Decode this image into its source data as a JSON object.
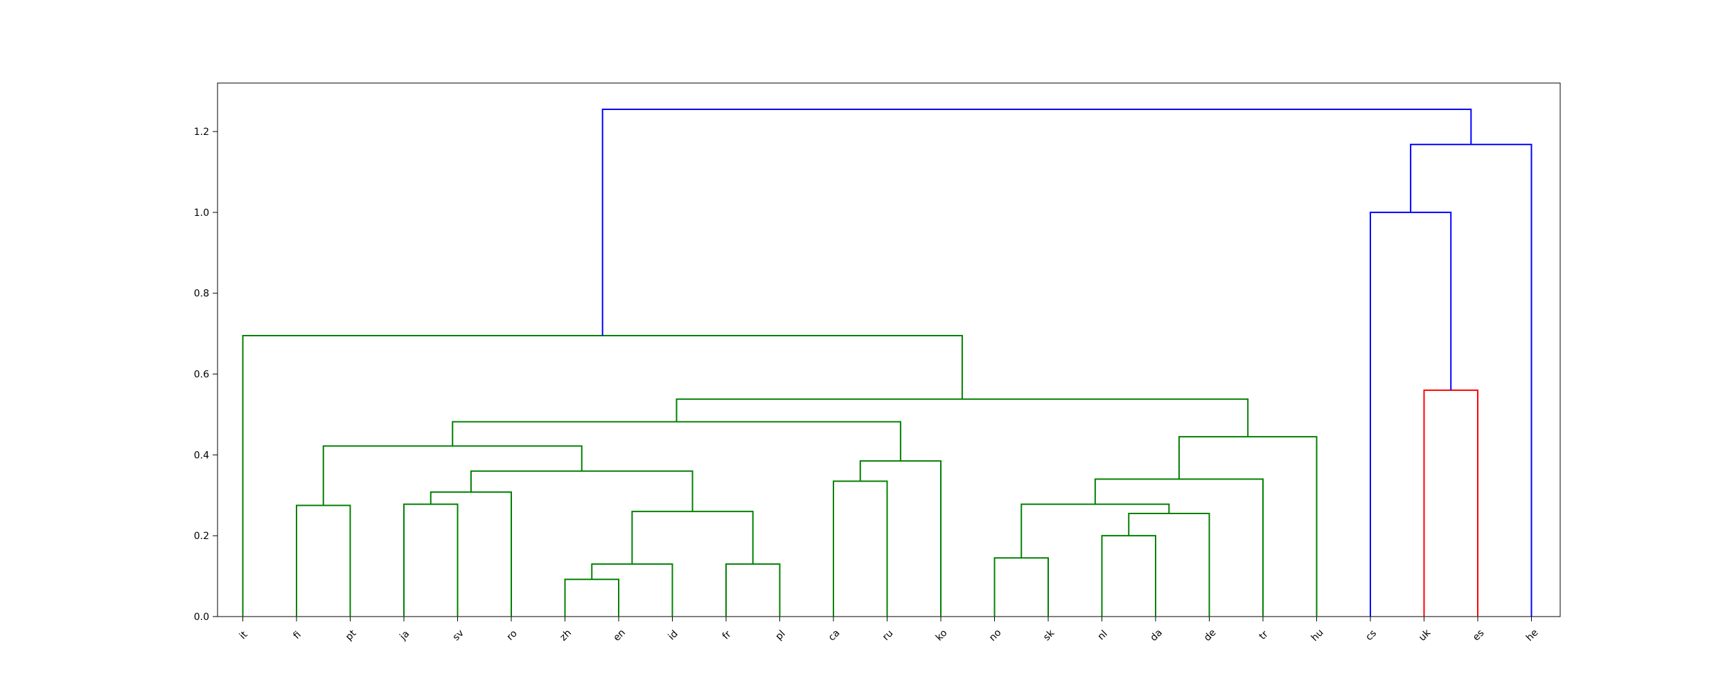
{
  "chart_data": {
    "type": "dendrogram",
    "title": "",
    "xlabel": "",
    "ylabel": "",
    "ylim": [
      0,
      1.32
    ],
    "yticks": [
      0.0,
      0.2,
      0.4,
      0.6,
      0.8,
      1.0,
      1.2
    ],
    "ytick_labels": [
      "0.0",
      "0.2",
      "0.4",
      "0.6",
      "0.8",
      "1.0",
      "1.2"
    ],
    "grid": false,
    "leaves": [
      "it",
      "fi",
      "pt",
      "ja",
      "sv",
      "ro",
      "zh",
      "en",
      "id",
      "fr",
      "pl",
      "ca",
      "ru",
      "ko",
      "no",
      "sk",
      "nl",
      "da",
      "de",
      "tr",
      "hu",
      "cs",
      "uk",
      "es",
      "he"
    ],
    "colors": {
      "green": "#008000",
      "red": "#ff0000",
      "blue": "#0000ff"
    },
    "merges": [
      {
        "id": "c_zh_en",
        "left": "zh",
        "right": "en",
        "height": 0.092,
        "color": "green"
      },
      {
        "id": "c_zh_en_id",
        "left": "c_zh_en",
        "right": "id",
        "height": 0.13,
        "color": "green"
      },
      {
        "id": "c_fr_pl",
        "left": "fr",
        "right": "pl",
        "height": 0.13,
        "color": "green"
      },
      {
        "id": "c_no_sk",
        "left": "no",
        "right": "sk",
        "height": 0.145,
        "color": "green"
      },
      {
        "id": "c_nl_da",
        "left": "nl",
        "right": "da",
        "height": 0.2,
        "color": "green"
      },
      {
        "id": "c_nl_da_de",
        "left": "c_nl_da",
        "right": "de",
        "height": 0.255,
        "color": "green"
      },
      {
        "id": "c_zh_pl",
        "left": "c_zh_en_id",
        "right": "c_fr_pl",
        "height": 0.26,
        "color": "green"
      },
      {
        "id": "c_fi_pt",
        "left": "fi",
        "right": "pt",
        "height": 0.275,
        "color": "green"
      },
      {
        "id": "c_ja_sv",
        "left": "ja",
        "right": "sv",
        "height": 0.278,
        "color": "green"
      },
      {
        "id": "c_no_de",
        "left": "c_no_sk",
        "right": "c_nl_da_de",
        "height": 0.278,
        "color": "green"
      },
      {
        "id": "c_ja_ro",
        "left": "c_ja_sv",
        "right": "ro",
        "height": 0.308,
        "color": "green"
      },
      {
        "id": "c_ca_ru",
        "left": "ca",
        "right": "ru",
        "height": 0.335,
        "color": "green"
      },
      {
        "id": "c_no_tr",
        "left": "c_no_de",
        "right": "tr",
        "height": 0.34,
        "color": "green"
      },
      {
        "id": "c_ja_pl",
        "left": "c_ja_ro",
        "right": "c_zh_pl",
        "height": 0.36,
        "color": "green"
      },
      {
        "id": "c_ca_ko",
        "left": "c_ca_ru",
        "right": "ko",
        "height": 0.385,
        "color": "green"
      },
      {
        "id": "c_fi_pl",
        "left": "c_fi_pt",
        "right": "c_ja_pl",
        "height": 0.422,
        "color": "green"
      },
      {
        "id": "c_no_hu",
        "left": "c_no_tr",
        "right": "hu",
        "height": 0.445,
        "color": "green"
      },
      {
        "id": "c_fi_ko",
        "left": "c_fi_pl",
        "right": "c_ca_ko",
        "height": 0.482,
        "color": "green"
      },
      {
        "id": "c_fi_hu",
        "left": "c_fi_ko",
        "right": "c_no_hu",
        "height": 0.538,
        "color": "green"
      },
      {
        "id": "c_uk_es",
        "left": "uk",
        "right": "es",
        "height": 0.56,
        "color": "red"
      },
      {
        "id": "c_it_hu",
        "left": "it",
        "right": "c_fi_hu",
        "height": 0.695,
        "color": "green"
      },
      {
        "id": "c_cs_es",
        "left": "cs",
        "right": "c_uk_es",
        "height": 1.0,
        "color": "blue"
      },
      {
        "id": "c_cs_he",
        "left": "c_cs_es",
        "right": "he",
        "height": 1.168,
        "color": "blue"
      },
      {
        "id": "c_root",
        "left": "c_it_hu",
        "right": "c_cs_he",
        "height": 1.255,
        "color": "blue"
      }
    ]
  }
}
